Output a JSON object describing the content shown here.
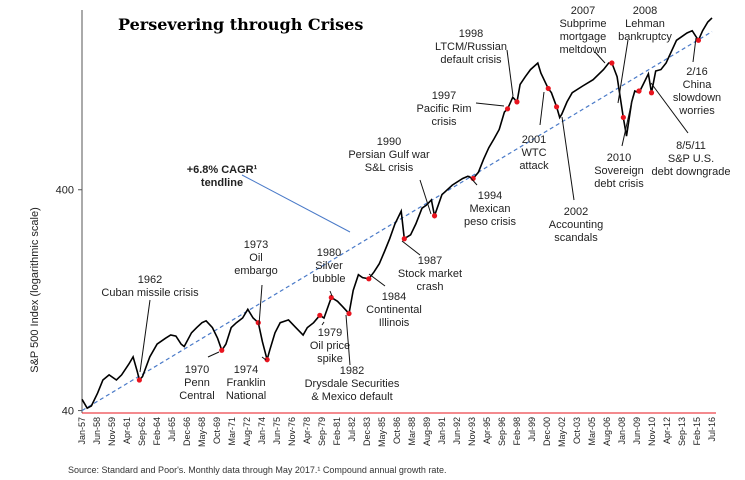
{
  "chart_data": {
    "type": "line",
    "title": "Persevering through Crises",
    "ylabel": "S&P 500 Index (logarithmic scale)",
    "y_scale": "log",
    "y_ticks": [
      40,
      400
    ],
    "ylim": [
      39,
      2500
    ],
    "x_tick_labels": [
      "Jan-57",
      "Jun-58",
      "Nov-59",
      "Apr-61",
      "Sep-62",
      "Feb-64",
      "Jul-65",
      "Dec-66",
      "May-68",
      "Oct-69",
      "Mar-71",
      "Aug-72",
      "Jan-74",
      "Jun-75",
      "Nov-76",
      "Apr-78",
      "Sep-79",
      "Feb-81",
      "Jul-82",
      "Dec-83",
      "May-85",
      "Oct-86",
      "Mar-88",
      "Aug-89",
      "Jan-91",
      "Jun-92",
      "Nov-93",
      "Apr-95",
      "Sep-96",
      "Feb-98",
      "Jul-99",
      "Dec-00",
      "May-02",
      "Oct-03",
      "Mar-05",
      "Aug-06",
      "Jan-08",
      "Jun-09",
      "Nov-10",
      "Apr-12",
      "Sep-13",
      "Feb-15",
      "Jul-16"
    ],
    "xlim": [
      1957.0,
      2017.4
    ],
    "series": [
      {
        "x": [
          1957.0,
          1957.5,
          1957.9,
          1958.5,
          1959.0,
          1959.6,
          1960.3,
          1960.8,
          1961.5,
          1961.9,
          1962.3,
          1962.5,
          1962.8,
          1963.5,
          1964.2,
          1965.0,
          1965.5,
          1966.0,
          1966.5,
          1966.8,
          1967.5,
          1968.0,
          1968.5,
          1968.9,
          1969.5,
          1970.0,
          1970.4,
          1970.8,
          1971.3,
          1971.8,
          1972.4,
          1972.9,
          1973.4,
          1973.9,
          1974.3,
          1974.75,
          1975.0,
          1975.5,
          1976.0,
          1976.8,
          1977.5,
          1978.2,
          1978.6,
          1979.2,
          1979.8,
          1980.2,
          1980.9,
          1981.5,
          1982.0,
          1982.6,
          1983.0,
          1983.5,
          1983.9,
          1984.5,
          1985.0,
          1985.5,
          1986.0,
          1986.5,
          1987.0,
          1987.6,
          1987.9,
          1988.5,
          1989.0,
          1989.6,
          1990.0,
          1990.5,
          1990.8,
          1991.5,
          1992.5,
          1993.5,
          1994.0,
          1994.5,
          1995.0,
          1995.5,
          1996.0,
          1996.5,
          1997.0,
          1997.5,
          1997.8,
          1998.3,
          1998.7,
          1999.0,
          1999.5,
          2000.0,
          2000.7,
          2001.0,
          2001.7,
          2002.0,
          2002.5,
          2002.8,
          2003.0,
          2003.5,
          2004.0,
          2005.0,
          2006.0,
          2007.0,
          2007.5,
          2007.8,
          2008.3,
          2008.9,
          2009.2,
          2009.7,
          2010.0,
          2010.4,
          2010.8,
          2011.3,
          2011.6,
          2012.0,
          2012.5,
          2013.0,
          2014.0,
          2015.0,
          2015.5,
          2016.1,
          2016.5,
          2017.0,
          2017.4
        ],
        "y": [
          45,
          41,
          42,
          48,
          55,
          58,
          55,
          58,
          65,
          70,
          60,
          55,
          57,
          70,
          80,
          85,
          88,
          87,
          80,
          78,
          90,
          95,
          100,
          102,
          95,
          85,
          75,
          80,
          95,
          100,
          105,
          115,
          105,
          100,
          82,
          68,
          75,
          90,
          100,
          103,
          95,
          88,
          95,
          100,
          108,
          105,
          130,
          125,
          118,
          110,
          140,
          165,
          160,
          158,
          170,
          185,
          210,
          240,
          280,
          320,
          240,
          250,
          280,
          330,
          340,
          360,
          305,
          380,
          420,
          450,
          460,
          450,
          480,
          550,
          620,
          680,
          750,
          900,
          930,
          1050,
          1000,
          1200,
          1300,
          1400,
          1500,
          1350,
          1150,
          1100,
          950,
          850,
          880,
          1000,
          1100,
          1180,
          1260,
          1400,
          1500,
          1500,
          1300,
          850,
          700,
          1000,
          1120,
          1100,
          1200,
          1340,
          1100,
          1380,
          1400,
          1500,
          1900,
          2050,
          2100,
          1900,
          2100,
          2300,
          2400
        ],
        "line_color": "#000000"
      },
      {
        "x": [
          1957.0,
          2017.4
        ],
        "y": [
          40,
          2080
        ],
        "line_color": "#4a7ac8"
      }
    ],
    "crisis_markers": [
      {
        "x": 1962.5,
        "y": 55
      },
      {
        "x": 1970.4,
        "y": 75
      },
      {
        "x": 1973.9,
        "y": 100
      },
      {
        "x": 1974.75,
        "y": 68
      },
      {
        "x": 1979.8,
        "y": 108
      },
      {
        "x": 1980.9,
        "y": 130
      },
      {
        "x": 1982.6,
        "y": 110
      },
      {
        "x": 1984.5,
        "y": 158
      },
      {
        "x": 1987.9,
        "y": 240
      },
      {
        "x": 1990.8,
        "y": 305
      },
      {
        "x": 1994.5,
        "y": 450
      },
      {
        "x": 1997.8,
        "y": 930
      },
      {
        "x": 1998.7,
        "y": 1000
      },
      {
        "x": 2001.7,
        "y": 1150
      },
      {
        "x": 2002.5,
        "y": 950
      },
      {
        "x": 2007.8,
        "y": 1500
      },
      {
        "x": 2008.9,
        "y": 850
      },
      {
        "x": 2010.4,
        "y": 1120
      },
      {
        "x": 2011.6,
        "y": 1100
      },
      {
        "x": 2016.1,
        "y": 1900
      }
    ],
    "annotations": [
      {
        "lines": [
          "1962",
          "Cuban missile crisis"
        ]
      },
      {
        "lines": [
          "1970",
          "Penn",
          "Central"
        ]
      },
      {
        "lines": [
          "1973",
          "Oil",
          "embargo"
        ]
      },
      {
        "lines": [
          "1974",
          "Franklin",
          "National"
        ]
      },
      {
        "lines": [
          "1979",
          "Oil price",
          "spike"
        ]
      },
      {
        "lines": [
          "1980",
          "Silver",
          "bubble"
        ]
      },
      {
        "lines": [
          "1982",
          "Drysdale Securities",
          "& Mexico default"
        ]
      },
      {
        "lines": [
          "1984",
          "Continental",
          "Illinois"
        ]
      },
      {
        "lines": [
          "1987",
          "Stock market",
          "crash"
        ]
      },
      {
        "lines": [
          "1990",
          "Persian Gulf war",
          "S&L crisis"
        ]
      },
      {
        "lines": [
          "1994",
          "Mexican",
          "peso crisis"
        ]
      },
      {
        "lines": [
          "1997",
          "Pacific Rim",
          "crisis"
        ]
      },
      {
        "lines": [
          "1998",
          "LTCM/Russian",
          "default crisis"
        ]
      },
      {
        "lines": [
          "2001",
          "WTC",
          "attack"
        ]
      },
      {
        "lines": [
          "2002",
          "Accounting",
          "scandals"
        ]
      },
      {
        "lines": [
          "2007",
          "Subprime",
          "mortgage",
          "meltdown"
        ]
      },
      {
        "lines": [
          "2008",
          "Lehman",
          "bankruptcy"
        ]
      },
      {
        "lines": [
          "2010",
          "Sovereign",
          "debt crisis"
        ]
      },
      {
        "lines": [
          "8/5/11",
          "S&P U.S.",
          "debt downgrade"
        ]
      },
      {
        "lines": [
          "2/16",
          "China",
          "slowdown",
          "worries"
        ]
      }
    ],
    "tendline_label": [
      "+6.8% CAGR¹",
      "tendline"
    ],
    "source": "Source: Standard and Poor's. Monthly data through May 2017.¹ Compound annual growth rate.",
    "colors": {
      "marker": "#e8141e",
      "trend": "#4a7ac8",
      "baseline": "#e8141e",
      "line": "#000000"
    }
  }
}
